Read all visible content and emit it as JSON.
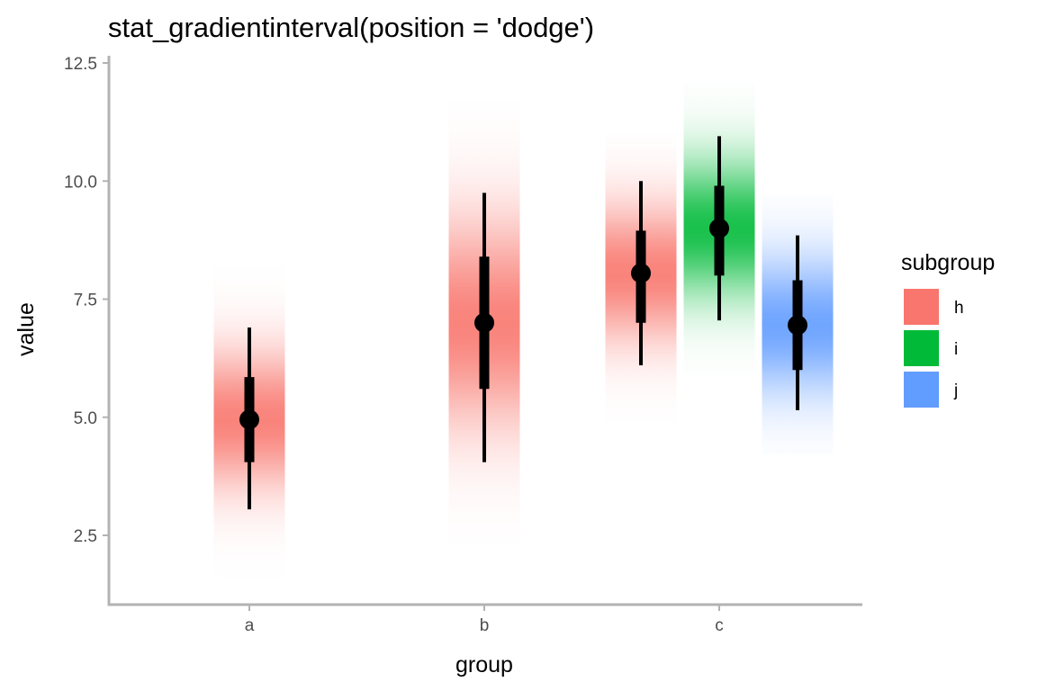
{
  "chart_data": {
    "type": "gradientinterval",
    "title": "stat_gradientinterval(position = 'dodge')",
    "xlabel": "group",
    "ylabel": "value",
    "categories": [
      "a",
      "b",
      "c"
    ],
    "ylim": [
      1.1,
      12.6
    ],
    "yticks": [
      2.5,
      5.0,
      7.5,
      10.0,
      12.5
    ],
    "ytick_labels": [
      "2.5",
      "5.0",
      "7.5",
      "10.0",
      "12.5"
    ],
    "grid": false,
    "legend": {
      "title": "subgroup",
      "placement": "right",
      "entries": [
        {
          "label": "h",
          "color": "#F8766D"
        },
        {
          "label": "i",
          "color": "#00BA38"
        },
        {
          "label": "j",
          "color": "#619CFF"
        }
      ]
    },
    "intervals": [
      {
        "group": "a",
        "subgroup": "h",
        "center": 4.95,
        "inner": [
          4.05,
          5.85
        ],
        "outer": [
          3.05,
          6.9
        ],
        "range": [
          1.6,
          8.2
        ],
        "sd": 1.0
      },
      {
        "group": "b",
        "subgroup": "h",
        "center": 7.0,
        "inner": [
          5.6,
          8.4
        ],
        "outer": [
          4.05,
          9.75
        ],
        "range": [
          2.3,
          11.7
        ],
        "sd": 1.5
      },
      {
        "group": "c",
        "subgroup": "h",
        "center": 8.05,
        "inner": [
          7.0,
          8.95
        ],
        "outer": [
          6.1,
          10.0
        ],
        "range": [
          4.9,
          11.0
        ],
        "sd": 1.0
      },
      {
        "group": "c",
        "subgroup": "i",
        "center": 9.0,
        "inner": [
          8.0,
          9.9
        ],
        "outer": [
          7.05,
          10.95
        ],
        "range": [
          5.9,
          12.1
        ],
        "sd": 1.0
      },
      {
        "group": "c",
        "subgroup": "j",
        "center": 6.95,
        "inner": [
          6.0,
          7.9
        ],
        "outer": [
          5.15,
          8.85
        ],
        "range": [
          4.2,
          9.7
        ],
        "sd": 1.0
      }
    ]
  }
}
